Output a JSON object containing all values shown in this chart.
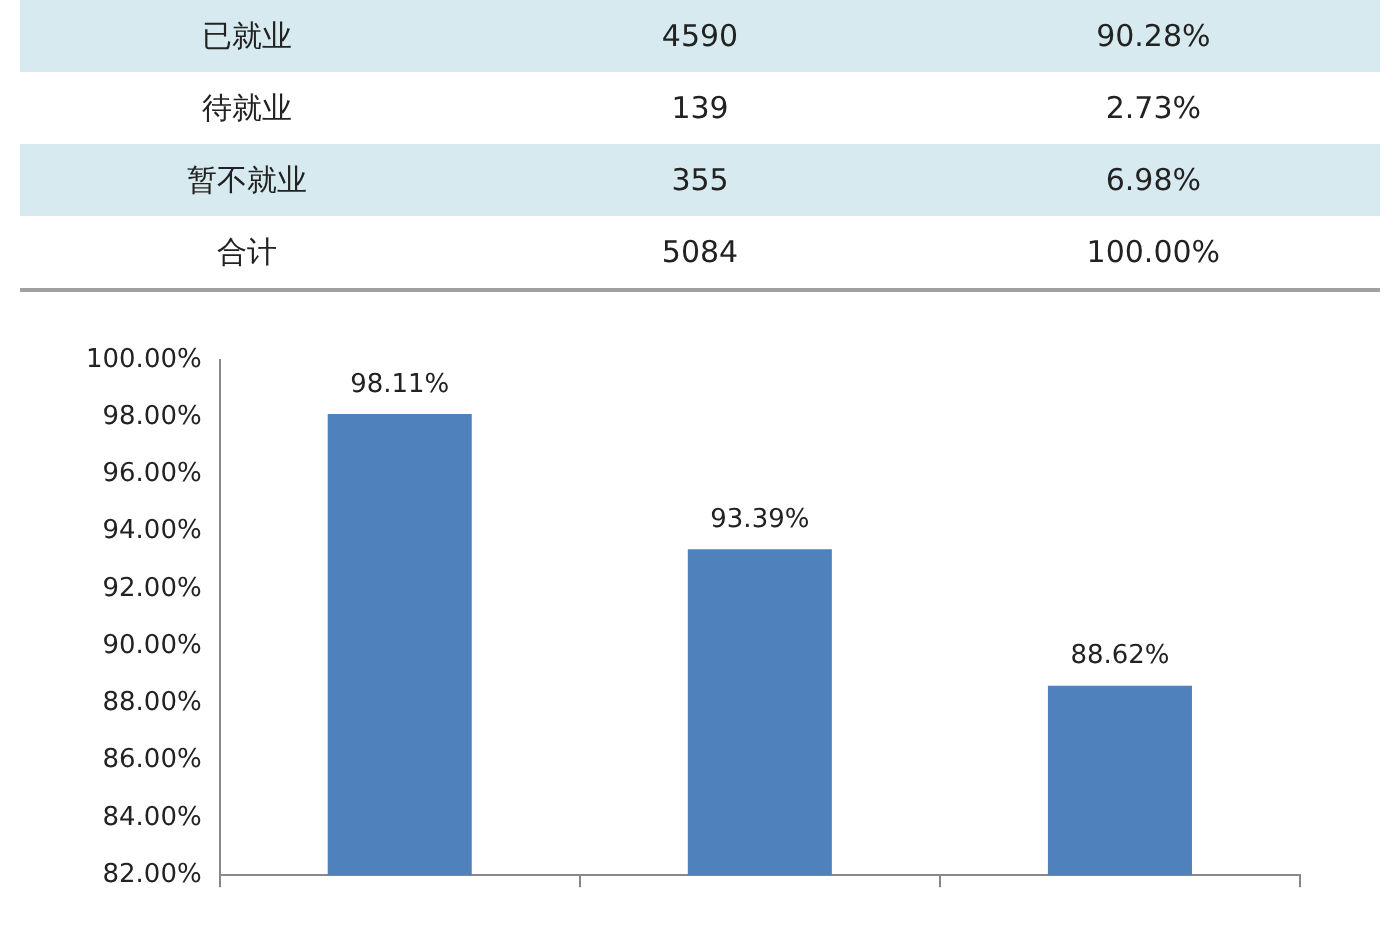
{
  "chart_data": [
    {
      "type": "other",
      "annotations": [
        "已就业",
        "4590",
        "90.28%",
        "待就业",
        "139",
        "2.73%",
        "暂不就业",
        "355",
        "6.98%",
        "合计",
        "5084",
        "100.00%"
      ]
    },
    {
      "type": "bar",
      "categories": [
        null,
        null,
        null
      ],
      "values": [
        98.11,
        93.39,
        88.62
      ],
      "color": "#4f81bd",
      "value_labels": [
        "98.11%",
        "93.39%",
        "88.62%"
      ],
      "ylim": [
        82,
        100
      ],
      "yticks": [
        {
          "value": 82,
          "label": "82.00%"
        },
        {
          "value": 84,
          "label": "84.00%"
        },
        {
          "value": 86,
          "label": "86.00%"
        },
        {
          "value": 88,
          "label": "88.00%"
        },
        {
          "value": 90,
          "label": "90.00%"
        },
        {
          "value": 92,
          "label": "92.00%"
        },
        {
          "value": 94,
          "label": "94.00%"
        },
        {
          "value": 96,
          "label": "96.00%"
        },
        {
          "value": 98,
          "label": "98.00%"
        },
        {
          "value": 100,
          "label": "100.00%"
        }
      ],
      "grid": false,
      "legend": false
    }
  ]
}
